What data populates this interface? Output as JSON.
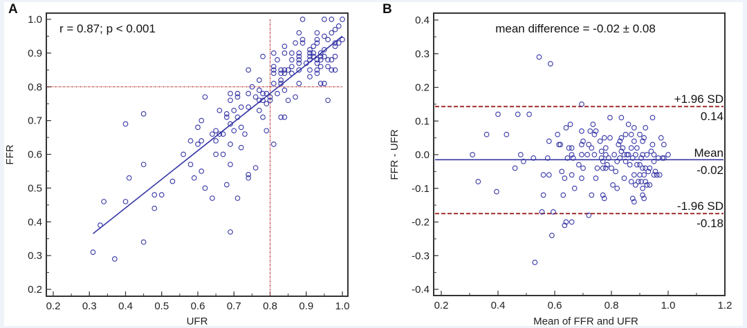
{
  "chart_data": [
    {
      "type": "scatter",
      "panel_label": "A",
      "title": "",
      "annotation": "r = 0.87; p < 0.001",
      "xlabel": "UFR",
      "ylabel": "FFR",
      "xlim": [
        0.2,
        1.0
      ],
      "ylim": [
        0.2,
        1.0
      ],
      "xticks": [
        "0.2",
        "0.3",
        "0.4",
        "0.5",
        "0.6",
        "0.7",
        "0.8",
        "0.9",
        "1.0"
      ],
      "yticks": [
        "0.2",
        "0.3",
        "0.4",
        "0.5",
        "0.6",
        "0.7",
        "0.8",
        "0.9",
        "1.0"
      ],
      "grid": false,
      "reference_lines": {
        "x": 0.8,
        "y": 0.8,
        "color": "#b03030"
      },
      "regression_line": {
        "x": [
          0.31,
          1.0
        ],
        "y": [
          0.365,
          0.95
        ],
        "color": "#3535a5"
      },
      "marker_color": "#3535a5",
      "points": [
        [
          0.31,
          0.31
        ],
        [
          0.33,
          0.39
        ],
        [
          0.34,
          0.46
        ],
        [
          0.37,
          0.29
        ],
        [
          0.4,
          0.69
        ],
        [
          0.4,
          0.46
        ],
        [
          0.41,
          0.53
        ],
        [
          0.45,
          0.72
        ],
        [
          0.45,
          0.57
        ],
        [
          0.45,
          0.34
        ],
        [
          0.48,
          0.48
        ],
        [
          0.48,
          0.44
        ],
        [
          0.5,
          0.48
        ],
        [
          0.53,
          0.52
        ],
        [
          0.56,
          0.6
        ],
        [
          0.58,
          0.64
        ],
        [
          0.58,
          0.57
        ],
        [
          0.59,
          0.53
        ],
        [
          0.6,
          0.68
        ],
        [
          0.6,
          0.63
        ],
        [
          0.61,
          0.7
        ],
        [
          0.61,
          0.64
        ],
        [
          0.61,
          0.55
        ],
        [
          0.62,
          0.77
        ],
        [
          0.62,
          0.5
        ],
        [
          0.64,
          0.66
        ],
        [
          0.64,
          0.47
        ],
        [
          0.65,
          0.67
        ],
        [
          0.65,
          0.64
        ],
        [
          0.65,
          0.6
        ],
        [
          0.66,
          0.73
        ],
        [
          0.66,
          0.66
        ],
        [
          0.67,
          0.66
        ],
        [
          0.67,
          0.6
        ],
        [
          0.68,
          0.72
        ],
        [
          0.68,
          0.71
        ],
        [
          0.68,
          0.51
        ],
        [
          0.69,
          0.78
        ],
        [
          0.69,
          0.76
        ],
        [
          0.69,
          0.69
        ],
        [
          0.69,
          0.63
        ],
        [
          0.69,
          0.57
        ],
        [
          0.69,
          0.37
        ],
        [
          0.7,
          0.73
        ],
        [
          0.7,
          0.67
        ],
        [
          0.71,
          0.78
        ],
        [
          0.71,
          0.77
        ],
        [
          0.71,
          0.71
        ],
        [
          0.71,
          0.47
        ],
        [
          0.72,
          0.74
        ],
        [
          0.72,
          0.68
        ],
        [
          0.72,
          0.62
        ],
        [
          0.73,
          0.66
        ],
        [
          0.74,
          0.85
        ],
        [
          0.74,
          0.78
        ],
        [
          0.74,
          0.74
        ],
        [
          0.74,
          0.54
        ],
        [
          0.74,
          0.53
        ],
        [
          0.75,
          0.8
        ],
        [
          0.76,
          0.77
        ],
        [
          0.76,
          0.56
        ],
        [
          0.77,
          0.82
        ],
        [
          0.77,
          0.79
        ],
        [
          0.77,
          0.76
        ],
        [
          0.77,
          0.73
        ],
        [
          0.78,
          0.89
        ],
        [
          0.78,
          0.78
        ],
        [
          0.78,
          0.76
        ],
        [
          0.78,
          0.71
        ],
        [
          0.79,
          0.78
        ],
        [
          0.79,
          0.75
        ],
        [
          0.79,
          0.67
        ],
        [
          0.8,
          0.77
        ],
        [
          0.8,
          0.76
        ],
        [
          0.81,
          0.9
        ],
        [
          0.81,
          0.86
        ],
        [
          0.81,
          0.85
        ],
        [
          0.81,
          0.84
        ],
        [
          0.81,
          0.81
        ],
        [
          0.81,
          0.63
        ],
        [
          0.82,
          0.88
        ],
        [
          0.82,
          0.78
        ],
        [
          0.83,
          0.85
        ],
        [
          0.83,
          0.84
        ],
        [
          0.83,
          0.82
        ],
        [
          0.83,
          0.81
        ],
        [
          0.83,
          0.71
        ],
        [
          0.84,
          0.92
        ],
        [
          0.84,
          0.9
        ],
        [
          0.84,
          0.85
        ],
        [
          0.84,
          0.84
        ],
        [
          0.84,
          0.79
        ],
        [
          0.84,
          0.71
        ],
        [
          0.85,
          0.85
        ],
        [
          0.85,
          0.76
        ],
        [
          0.86,
          0.9
        ],
        [
          0.86,
          0.88
        ],
        [
          0.86,
          0.86
        ],
        [
          0.86,
          0.84
        ],
        [
          0.87,
          0.93
        ],
        [
          0.87,
          0.77
        ],
        [
          0.88,
          0.96
        ],
        [
          0.88,
          0.9
        ],
        [
          0.88,
          0.89
        ],
        [
          0.88,
          0.88
        ],
        [
          0.88,
          0.87
        ],
        [
          0.88,
          0.85
        ],
        [
          0.88,
          0.81
        ],
        [
          0.89,
          1.0
        ],
        [
          0.89,
          0.94
        ],
        [
          0.89,
          0.93
        ],
        [
          0.9,
          0.87
        ],
        [
          0.91,
          0.91
        ],
        [
          0.91,
          0.9
        ],
        [
          0.91,
          0.89
        ],
        [
          0.91,
          0.88
        ],
        [
          0.91,
          0.85
        ],
        [
          0.91,
          0.83
        ],
        [
          0.92,
          0.92
        ],
        [
          0.92,
          0.9
        ],
        [
          0.92,
          0.89
        ],
        [
          0.93,
          0.96
        ],
        [
          0.93,
          0.94
        ],
        [
          0.93,
          0.93
        ],
        [
          0.93,
          0.88
        ],
        [
          0.93,
          0.87
        ],
        [
          0.93,
          0.85
        ],
        [
          0.93,
          0.84
        ],
        [
          0.94,
          0.9
        ],
        [
          0.94,
          0.89
        ],
        [
          0.94,
          0.88
        ],
        [
          0.94,
          0.86
        ],
        [
          0.94,
          0.81
        ],
        [
          0.95,
          1.0
        ],
        [
          0.95,
          0.95
        ],
        [
          0.95,
          0.91
        ],
        [
          0.95,
          0.89
        ],
        [
          0.95,
          0.81
        ],
        [
          0.96,
          0.94
        ],
        [
          0.96,
          0.88
        ],
        [
          0.96,
          0.86
        ],
        [
          0.96,
          0.76
        ],
        [
          0.97,
          1.0
        ],
        [
          0.97,
          0.96
        ],
        [
          0.97,
          0.88
        ],
        [
          0.97,
          0.85
        ],
        [
          0.98,
          0.97
        ],
        [
          0.98,
          0.93
        ],
        [
          0.98,
          0.92
        ],
        [
          0.98,
          0.89
        ],
        [
          0.98,
          0.85
        ],
        [
          0.99,
          0.98
        ],
        [
          0.99,
          0.93
        ],
        [
          1.0,
          1.0
        ],
        [
          1.0,
          0.94
        ]
      ]
    },
    {
      "type": "scatter",
      "panel_label": "B",
      "title": "",
      "annotation": "mean difference = -0.02 ± 0.08",
      "xlabel": "Mean of FFR and UFR",
      "ylabel": "FFR - UFR",
      "xlim": [
        0.2,
        1.2
      ],
      "ylim": [
        -0.4,
        0.4
      ],
      "xticks": [
        "0.2",
        "0.4",
        "0.6",
        "0.8",
        "1.0",
        "1.2"
      ],
      "yticks": [
        "-0.4",
        "-0.3",
        "-0.2",
        "-0.1",
        "0.0",
        "0.1",
        "0.2",
        "0.3",
        "0.4"
      ],
      "grid": false,
      "mean_line": {
        "value": -0.015,
        "label": "Mean",
        "value_label": "-0.02",
        "color": "#3535a5"
      },
      "upper_loa": {
        "value": 0.143,
        "label": "+1.96 SD",
        "value_label": "0.14",
        "color": "#9b1c1c"
      },
      "lower_loa": {
        "value": -0.175,
        "label": "-1.96 SD",
        "value_label": "-0.18",
        "color": "#9b1c1c"
      },
      "marker_color": "#3535a5",
      "points": [
        [
          0.31,
          0.0
        ],
        [
          0.33,
          -0.08
        ],
        [
          0.36,
          0.06
        ],
        [
          0.395,
          -0.11
        ],
        [
          0.4,
          0.12
        ],
        [
          0.43,
          0.06
        ],
        [
          0.46,
          -0.04
        ],
        [
          0.47,
          0.12
        ],
        [
          0.48,
          0.0
        ],
        [
          0.49,
          -0.02
        ],
        [
          0.51,
          0.12
        ],
        [
          0.525,
          -0.01
        ],
        [
          0.53,
          -0.32
        ],
        [
          0.545,
          0.29
        ],
        [
          0.555,
          -0.17
        ],
        [
          0.56,
          -0.06
        ],
        [
          0.56,
          -0.12
        ],
        [
          0.575,
          -0.01
        ],
        [
          0.58,
          0.04
        ],
        [
          0.58,
          -0.06
        ],
        [
          0.585,
          0.27
        ],
        [
          0.59,
          -0.24
        ],
        [
          0.595,
          -0.17
        ],
        [
          0.61,
          0.06
        ],
        [
          0.615,
          0.03
        ],
        [
          0.62,
          0.03
        ],
        [
          0.625,
          -0.05
        ],
        [
          0.63,
          -0.12
        ],
        [
          0.635,
          -0.07
        ],
        [
          0.635,
          -0.21
        ],
        [
          0.64,
          0.08
        ],
        [
          0.64,
          -0.2
        ],
        [
          0.645,
          -0.01
        ],
        [
          0.65,
          0.02
        ],
        [
          0.655,
          0.09
        ],
        [
          0.66,
          0.02
        ],
        [
          0.66,
          0.0
        ],
        [
          0.66,
          -0.06
        ],
        [
          0.66,
          -0.2
        ],
        [
          0.665,
          -0.01
        ],
        [
          0.67,
          -0.1
        ],
        [
          0.685,
          -0.03
        ],
        [
          0.695,
          0.15
        ],
        [
          0.695,
          0.07
        ],
        [
          0.695,
          0.03
        ],
        [
          0.695,
          0.0
        ],
        [
          0.695,
          -0.07
        ],
        [
          0.7,
          0.04
        ],
        [
          0.7,
          -0.04
        ],
        [
          0.715,
          0.0
        ],
        [
          0.72,
          0.03
        ],
        [
          0.72,
          -0.18
        ],
        [
          0.725,
          0.07
        ],
        [
          0.73,
          0.02
        ],
        [
          0.73,
          -0.12
        ],
        [
          0.735,
          0.09
        ],
        [
          0.74,
          0.06
        ],
        [
          0.74,
          0.0
        ],
        [
          0.745,
          0.07
        ],
        [
          0.745,
          -0.07
        ],
        [
          0.75,
          -0.04
        ],
        [
          0.76,
          0.04
        ],
        [
          0.765,
          0.01
        ],
        [
          0.765,
          -0.01
        ],
        [
          0.77,
          -0.02
        ],
        [
          0.77,
          -0.04
        ],
        [
          0.77,
          -0.12
        ],
        [
          0.775,
          0.05
        ],
        [
          0.775,
          -0.13
        ],
        [
          0.78,
          0.02
        ],
        [
          0.78,
          0.0
        ],
        [
          0.78,
          -0.04
        ],
        [
          0.785,
          -0.03
        ],
        [
          0.79,
          -0.01
        ],
        [
          0.795,
          0.11
        ],
        [
          0.795,
          0.05
        ],
        [
          0.8,
          -0.04
        ],
        [
          0.805,
          -0.09
        ],
        [
          0.81,
          0.0
        ],
        [
          0.815,
          -0.05
        ],
        [
          0.82,
          -0.02
        ],
        [
          0.82,
          -0.1
        ],
        [
          0.825,
          0.03
        ],
        [
          0.83,
          0.04
        ],
        [
          0.83,
          -0.01
        ],
        [
          0.835,
          0.11
        ],
        [
          0.835,
          0.05
        ],
        [
          0.835,
          0.01
        ],
        [
          0.84,
          0.02
        ],
        [
          0.845,
          0.0
        ],
        [
          0.845,
          -0.07
        ],
        [
          0.85,
          0.06
        ],
        [
          0.85,
          -0.02
        ],
        [
          0.855,
          0.0
        ],
        [
          0.86,
          0.09
        ],
        [
          0.86,
          0.0
        ],
        [
          0.865,
          -0.03
        ],
        [
          0.87,
          0.06
        ],
        [
          0.87,
          0.02
        ],
        [
          0.87,
          -0.08
        ],
        [
          0.875,
          -0.13
        ],
        [
          0.875,
          -0.01
        ],
        [
          0.88,
          0.08
        ],
        [
          0.88,
          0.04
        ],
        [
          0.88,
          -0.06
        ],
        [
          0.88,
          -0.14
        ],
        [
          0.885,
          0.0
        ],
        [
          0.885,
          -0.09
        ],
        [
          0.89,
          0.02
        ],
        [
          0.89,
          -0.03
        ],
        [
          0.895,
          -0.08
        ],
        [
          0.9,
          0.06
        ],
        [
          0.9,
          -0.03
        ],
        [
          0.9,
          -0.06
        ],
        [
          0.905,
          -0.08
        ],
        [
          0.905,
          -0.01
        ],
        [
          0.91,
          0.04
        ],
        [
          0.91,
          0.0
        ],
        [
          0.91,
          -0.04
        ],
        [
          0.91,
          -0.1
        ],
        [
          0.91,
          -0.12
        ],
        [
          0.915,
          0.05
        ],
        [
          0.915,
          -0.06
        ],
        [
          0.915,
          -0.13
        ],
        [
          0.92,
          0.08
        ],
        [
          0.92,
          -0.04
        ],
        [
          0.92,
          -0.08
        ],
        [
          0.925,
          -0.09
        ],
        [
          0.925,
          0.0
        ],
        [
          0.93,
          -0.05
        ],
        [
          0.935,
          -0.04
        ],
        [
          0.935,
          -0.09
        ],
        [
          0.94,
          0.01
        ],
        [
          0.945,
          0.11
        ],
        [
          0.945,
          0.03
        ],
        [
          0.95,
          0.0
        ],
        [
          0.95,
          -0.02
        ],
        [
          0.95,
          -0.06
        ],
        [
          0.955,
          -0.05
        ],
        [
          0.96,
          -0.06
        ],
        [
          0.965,
          -0.01
        ],
        [
          0.97,
          -0.06
        ],
        [
          0.975,
          0.05
        ],
        [
          0.98,
          -0.01
        ],
        [
          0.985,
          0.03
        ],
        [
          0.985,
          -0.01
        ],
        [
          1.0,
          0.0
        ]
      ]
    }
  ]
}
